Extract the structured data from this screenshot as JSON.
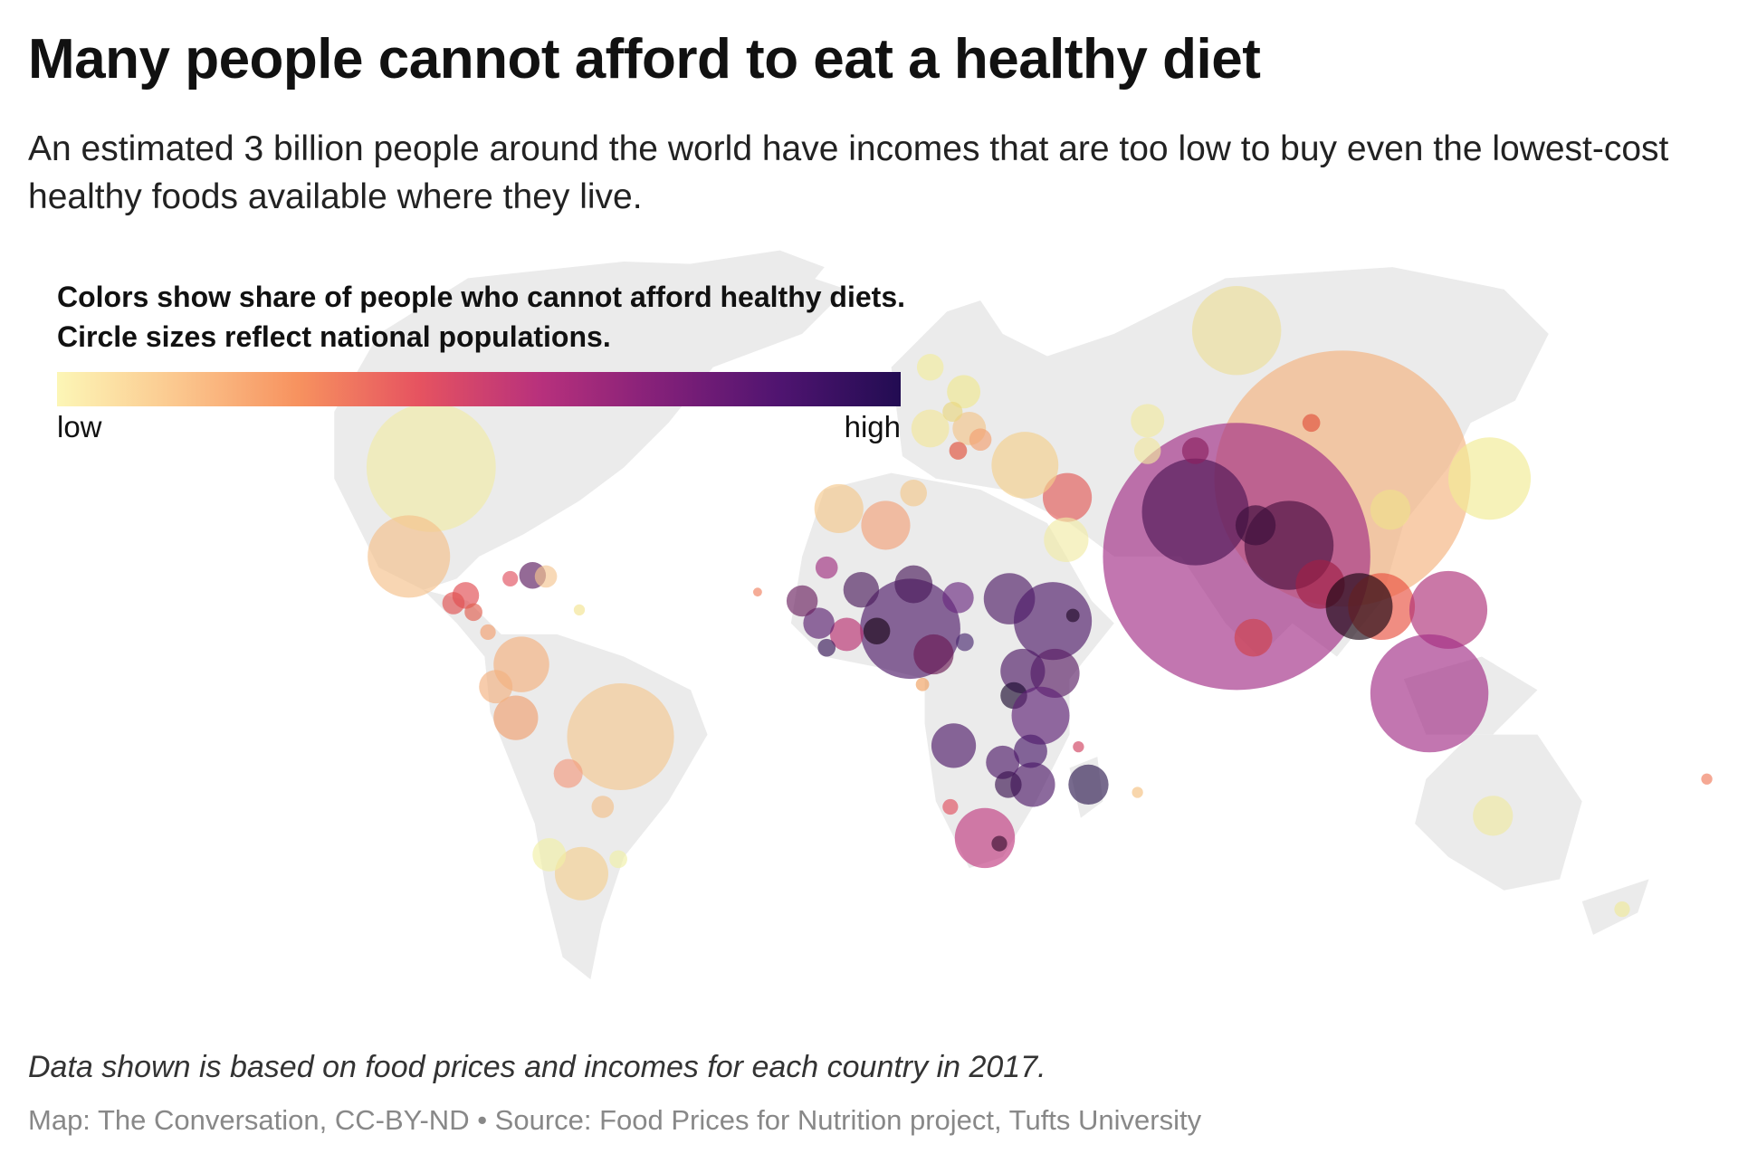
{
  "header": {
    "title": "Many people cannot afford to eat a healthy diet",
    "subtitle": "An estimated 3 billion people around the world have incomes that are too low to buy even the lowest-cost healthy foods available where they live."
  },
  "legend": {
    "title": "Colors show share of people who cannot afford healthy diets. Circle sizes reflect national populations.",
    "low_label": "low",
    "high_label": "high",
    "colors": [
      "#fcf6b6",
      "#fbc78e",
      "#f7925f",
      "#e65360",
      "#b8317c",
      "#832079",
      "#4f1470",
      "#220c52"
    ]
  },
  "map": {
    "type": "bubble map",
    "land_color": "#ebebeb",
    "border_color": "#555555"
  },
  "footer": {
    "note": "Data shown is based on food prices and incomes for each country in 2017.",
    "source": "Map: The Conversation, CC-BY-ND • Source: Food Prices for Nutrition project, Tufts University"
  }
}
